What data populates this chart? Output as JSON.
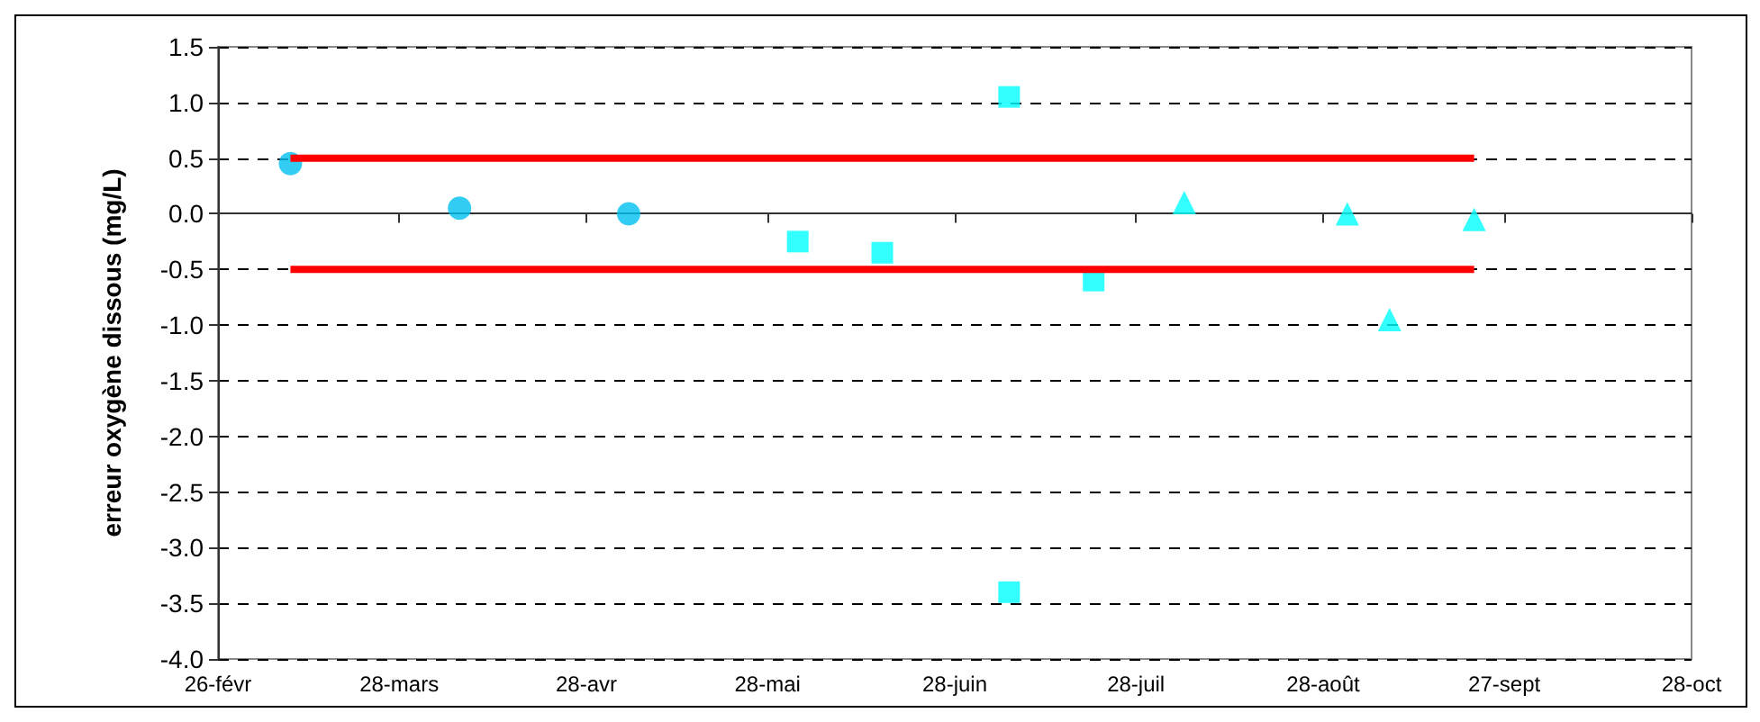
{
  "chart_data": {
    "type": "scatter",
    "ylabel": "erreur oxygène dissous (mg/L)",
    "xlim": [
      "--02-26",
      "--10-28"
    ],
    "xticks": [
      {
        "value": "--02-26",
        "label": "26-févr"
      },
      {
        "value": "--03-28",
        "label": "28-mars"
      },
      {
        "value": "--04-28",
        "label": "28-avr"
      },
      {
        "value": "--05-28",
        "label": "28-mai"
      },
      {
        "value": "--06-28",
        "label": "28-juin"
      },
      {
        "value": "--07-28",
        "label": "28-juil"
      },
      {
        "value": "--08-28",
        "label": "28-août"
      },
      {
        "value": "--09-27",
        "label": "27-sept"
      },
      {
        "value": "--10-28",
        "label": "28-oct"
      }
    ],
    "ylim": [
      -4,
      1.5
    ],
    "yticks": [
      {
        "value": -4,
        "label": "-4.0"
      },
      {
        "value": -3.5,
        "label": "-3.5"
      },
      {
        "value": -3,
        "label": "-3.0"
      },
      {
        "value": -2.5,
        "label": "-2.5"
      },
      {
        "value": -2,
        "label": "-2.0"
      },
      {
        "value": -1.5,
        "label": "-1.5"
      },
      {
        "value": -1,
        "label": "-1.0"
      },
      {
        "value": -0.5,
        "label": "-0.5"
      },
      {
        "value": 0,
        "label": "0.0"
      },
      {
        "value": 0.5,
        "label": "0.5"
      },
      {
        "value": 1,
        "label": "1.0"
      },
      {
        "value": 1.5,
        "label": "1.5"
      }
    ],
    "grid": "y",
    "series": [
      {
        "marker": "circle",
        "color": "#00c0f0",
        "x": [
          "--03-10",
          "--04-07",
          "--05-05"
        ],
        "values": [
          0.45,
          0.05,
          0.0
        ]
      },
      {
        "marker": "square",
        "color": "#00ffff",
        "x": [
          "--06-02",
          "--06-16",
          "--07-07",
          "--07-07",
          "--07-21"
        ],
        "values": [
          -0.25,
          -0.35,
          1.05,
          -3.4,
          -0.6
        ]
      },
      {
        "marker": "triangle",
        "color": "#00ffff",
        "x": [
          "--08-05",
          "--09-01",
          "--09-08",
          "--09-22"
        ],
        "values": [
          0.1,
          0.0,
          -0.95,
          -0.05
        ]
      },
      {
        "type": "line",
        "marker": "none",
        "color": "#ff0000",
        "x": [
          "--03-10",
          "--09-22"
        ],
        "values": [
          0.5,
          0.5
        ]
      },
      {
        "type": "line",
        "marker": "none",
        "color": "#ff0000",
        "x": [
          "--03-10",
          "--09-22"
        ],
        "values": [
          -0.5,
          -0.5
        ]
      }
    ]
  }
}
